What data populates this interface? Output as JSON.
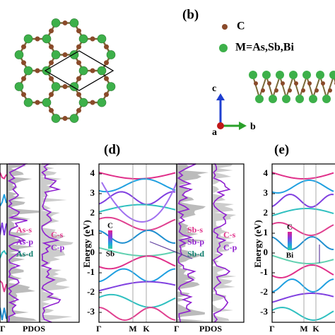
{
  "structure": {
    "label": "(b)",
    "legend": [
      "C",
      "M=As,Sb,Bi"
    ],
    "axes": [
      "c",
      "a",
      "b"
    ]
  },
  "panel_left": {
    "legend_m": [
      "As-s",
      "As-p",
      "As-d"
    ],
    "legend_c": [
      "C-s",
      "C-p"
    ],
    "xlabels": [
      "Γ",
      "PDOS"
    ]
  },
  "panel_d": {
    "label": "(d)",
    "ylabel": "Energy (eV)",
    "ylim": [
      -3.5,
      4.5
    ],
    "yticks": [
      4,
      3,
      2,
      1,
      0,
      -1,
      -2,
      -3
    ],
    "colorbar": [
      "C",
      "Sb"
    ],
    "legend_m": [
      "Sb-s",
      "Sb-p",
      "Sb-d"
    ],
    "legend_c": [
      "C-s",
      "C-p"
    ],
    "xlabels": [
      "Γ",
      "M",
      "K",
      "Γ",
      "PDOS"
    ]
  },
  "panel_e": {
    "label": "(e)",
    "ylabel": "Energy (eV)",
    "ylim": [
      -3.5,
      4.5
    ],
    "yticks": [
      4,
      3,
      2,
      1,
      0,
      -1,
      -2,
      -3
    ],
    "colorbar": [
      "C",
      "Bi"
    ],
    "xlabels": [
      "Γ",
      "M",
      "K"
    ]
  }
}
